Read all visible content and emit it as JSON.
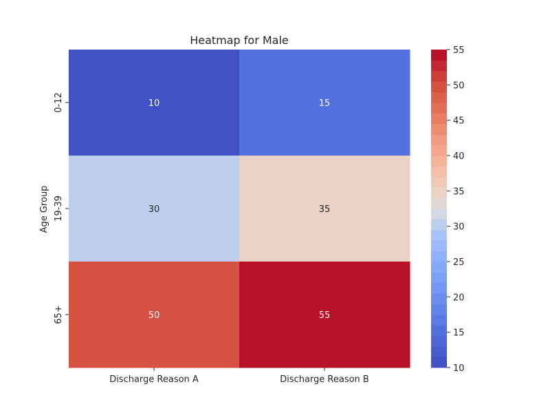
{
  "chart_data": {
    "type": "heatmap",
    "title": "Heatmap for Male",
    "xlabel": "",
    "ylabel": "Age Group",
    "x_categories": [
      "Discharge Reason A",
      "Discharge Reason B"
    ],
    "y_categories": [
      "0-12",
      "19-39",
      "65+"
    ],
    "values": [
      [
        10,
        15
      ],
      [
        30,
        35
      ],
      [
        50,
        55
      ]
    ],
    "colorbar": {
      "min": 10,
      "max": 55,
      "ticks": [
        10,
        15,
        20,
        25,
        30,
        35,
        40,
        45,
        50,
        55
      ],
      "colormap": "coolwarm",
      "levels": 30
    },
    "annotate_cells": true,
    "legend_position": "right"
  }
}
